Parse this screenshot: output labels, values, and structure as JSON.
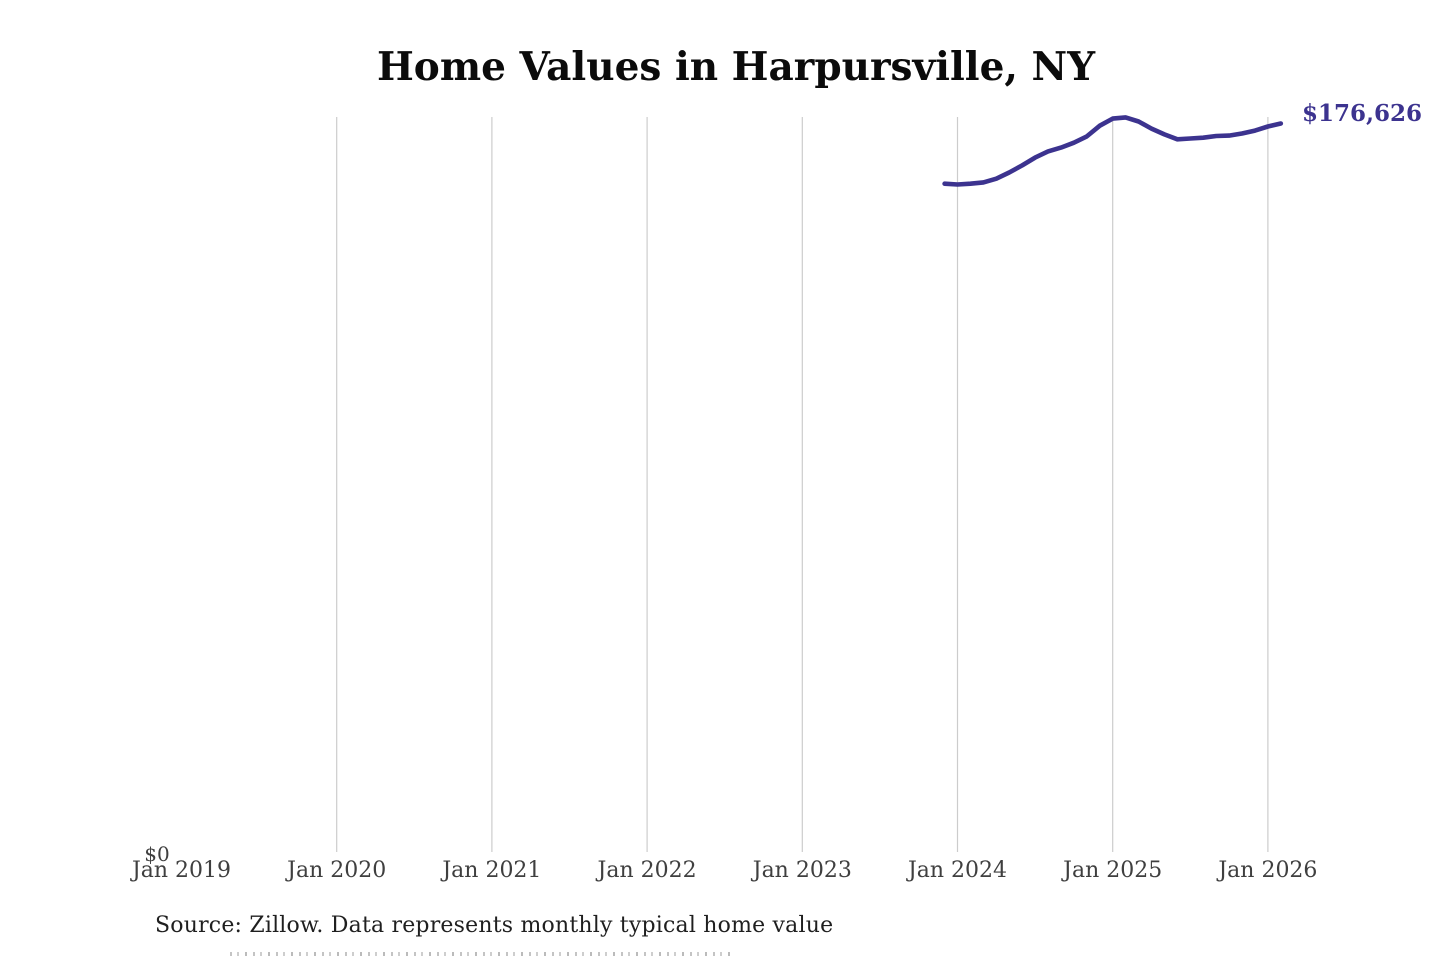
{
  "chart": {
    "title": "Home Values in Harpursville, NY",
    "latest_value_label": "$176,626",
    "y_zero_label": "$0",
    "source_note": "Source: Zillow. Data represents monthly typical home value",
    "colors": {
      "line": "#3c338f",
      "value_label": "#3c338f",
      "gridline": "#cccccc",
      "axis_label": "#3f3f3f",
      "title_text": "#0b0b0b",
      "source_text": "#1f1f1f"
    }
  },
  "chart_data": {
    "type": "line",
    "title": "Home Values in Harpursville, NY",
    "series_label": "Monthly typical home value",
    "x": [
      "Dec 2023",
      "Jan 2024",
      "Feb 2024",
      "Mar 2024",
      "Apr 2024",
      "May 2024",
      "Jun 2024",
      "Jul 2024",
      "Aug 2024",
      "Sep 2024",
      "Oct 2024",
      "Nov 2024",
      "Dec 2024",
      "Jan 2025",
      "Feb 2025",
      "Mar 2025",
      "Apr 2025",
      "May 2025",
      "Jun 2025",
      "Jul 2025",
      "Aug 2025",
      "Sep 2025",
      "Oct 2025",
      "Nov 2025",
      "Dec 2025",
      "Jan 2026",
      "Feb 2026"
    ],
    "values": [
      162100,
      161900,
      162100,
      162400,
      163300,
      164800,
      166500,
      168400,
      169900,
      170800,
      172000,
      173500,
      176100,
      177800,
      178100,
      177100,
      175400,
      174000,
      172800,
      173000,
      173200,
      173600,
      173700,
      174200,
      174900,
      175900,
      176626
    ],
    "end_label": "$176,626",
    "x_tick_labels": [
      "Jan 2019",
      "Jan 2020",
      "Jan 2021",
      "Jan 2022",
      "Jan 2023",
      "Jan 2024",
      "Jan 2025",
      "Jan 2026"
    ],
    "x_tick_years": [
      2019,
      2020,
      2021,
      2022,
      2023,
      2024,
      2025,
      2026
    ],
    "gridline_years": [
      2020,
      2021,
      2022,
      2023,
      2024,
      2025,
      2026
    ],
    "xlabel": "",
    "ylabel": "",
    "ylim": [
      0,
      178100
    ],
    "grid": "vertical-only",
    "legend": "none"
  }
}
